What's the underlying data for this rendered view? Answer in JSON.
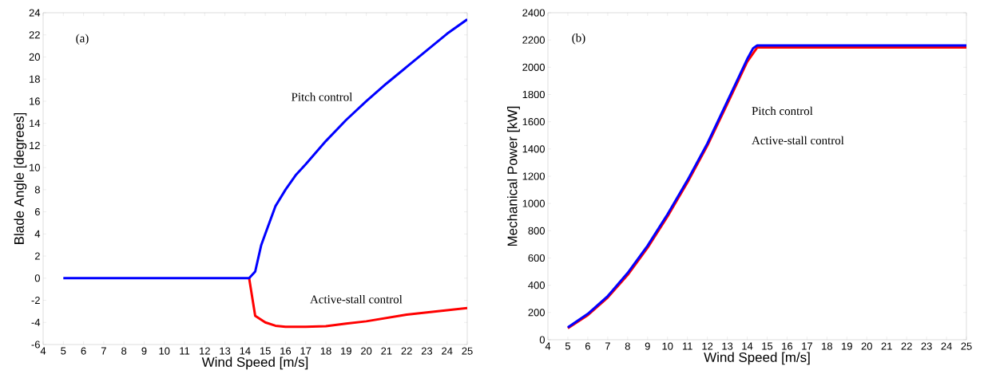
{
  "chart_data": [
    {
      "type": "line",
      "xlabel": "Wind Speed [m/s]",
      "ylabel": "Blade Angle [degrees]",
      "xlim": [
        4,
        25
      ],
      "ylim": [
        -6,
        24
      ],
      "xticks": [
        4,
        5,
        6,
        7,
        8,
        9,
        10,
        11,
        12,
        13,
        14,
        15,
        16,
        17,
        18,
        19,
        20,
        21,
        22,
        23,
        24,
        25
      ],
      "yticks": [
        -6,
        -4,
        -2,
        0,
        2,
        4,
        6,
        8,
        10,
        12,
        14,
        16,
        18,
        20,
        22,
        24
      ],
      "grid": false,
      "marker": "none",
      "line_style": "solid",
      "annotations": [
        "(a)"
      ],
      "series": [
        {
          "name": "Active-stall control",
          "color": "#ff0000",
          "x": [
            14.2,
            14.5,
            15,
            15.5,
            16,
            17,
            18,
            19,
            20,
            21,
            22,
            23,
            24,
            25
          ],
          "values": [
            0,
            -3.4,
            -4,
            -4.3,
            -4.4,
            -4.4,
            -4.35,
            -4.1,
            -3.9,
            -3.6,
            -3.3,
            -3.1,
            -2.9,
            -2.7
          ]
        },
        {
          "name": "Pitch control",
          "color": "#0000ff",
          "x": [
            5,
            14.2,
            14.5,
            14.8,
            15,
            15.5,
            16,
            16.5,
            17,
            18,
            19,
            20,
            21,
            22,
            23,
            24,
            25
          ],
          "values": [
            0,
            0,
            0.6,
            3,
            4,
            6.5,
            8,
            9.3,
            10.3,
            12.4,
            14.3,
            16,
            17.6,
            19.1,
            20.6,
            22.1,
            23.4
          ]
        }
      ]
    },
    {
      "type": "line",
      "xlabel": "Wind Speed [m/s]",
      "ylabel": "Mechanical Power [kW]",
      "xlim": [
        4,
        25
      ],
      "ylim": [
        0,
        2400
      ],
      "xticks": [
        4,
        5,
        6,
        7,
        8,
        9,
        10,
        11,
        12,
        13,
        14,
        15,
        16,
        17,
        18,
        19,
        20,
        21,
        22,
        23,
        24,
        25
      ],
      "yticks": [
        0,
        200,
        400,
        600,
        800,
        1000,
        1200,
        1400,
        1600,
        1800,
        2000,
        2200,
        2400
      ],
      "grid": false,
      "marker": "none",
      "line_style": "solid",
      "annotations": [
        "(b)",
        "Pitch control",
        "Active-stall control"
      ],
      "series": [
        {
          "color": "#ff0000",
          "x": [
            5,
            6,
            7,
            8,
            9,
            10,
            11,
            12,
            13,
            14,
            14.5,
            25
          ],
          "values": [
            85,
            180,
            310,
            475,
            675,
            905,
            1155,
            1425,
            1730,
            2040,
            2145,
            2145
          ]
        },
        {
          "color": "#0000ff",
          "x": [
            5,
            6,
            7,
            8,
            9,
            10,
            11,
            12,
            13,
            14,
            14.3,
            14.5,
            25
          ],
          "values": [
            90,
            190,
            320,
            490,
            690,
            920,
            1170,
            1440,
            1750,
            2060,
            2140,
            2160,
            2160
          ]
        }
      ]
    }
  ]
}
